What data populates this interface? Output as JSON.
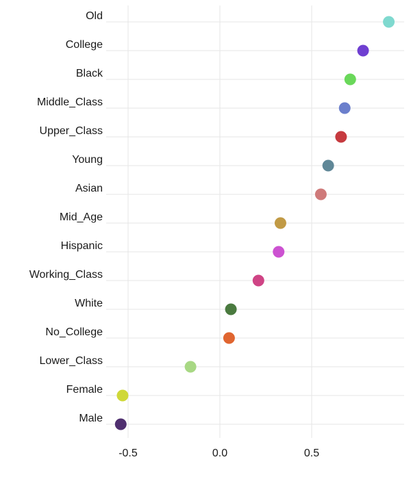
{
  "chart_data": {
    "type": "scatter",
    "title": "",
    "xlabel": "",
    "ylabel": "",
    "xlim": [
      -0.6,
      1.0
    ],
    "xticks": [
      -0.5,
      0.0,
      0.5
    ],
    "xtick_labels": [
      "-0.5",
      "0.0",
      "0.5"
    ],
    "grid": true,
    "legend": "none",
    "points": [
      {
        "label": "Old",
        "value": 0.92,
        "color": "#7fd9cf"
      },
      {
        "label": "College",
        "value": 0.78,
        "color": "#6f3fd1"
      },
      {
        "label": "Black",
        "value": 0.71,
        "color": "#6ad85a"
      },
      {
        "label": "Middle_Class",
        "value": 0.68,
        "color": "#6b7fcc"
      },
      {
        "label": "Upper_Class",
        "value": 0.66,
        "color": "#c63a3f"
      },
      {
        "label": "Young",
        "value": 0.59,
        "color": "#5f8797"
      },
      {
        "label": "Asian",
        "value": 0.55,
        "color": "#cf7a7a"
      },
      {
        "label": "Mid_Age",
        "value": 0.33,
        "color": "#c19a45"
      },
      {
        "label": "Hispanic",
        "value": 0.32,
        "color": "#cc52d1"
      },
      {
        "label": "Working_Class",
        "value": 0.21,
        "color": "#cf4485"
      },
      {
        "label": "White",
        "value": 0.06,
        "color": "#4a7a3f"
      },
      {
        "label": "No_College",
        "value": 0.05,
        "color": "#e06530"
      },
      {
        "label": "Lower_Class",
        "value": -0.16,
        "color": "#a8d884"
      },
      {
        "label": "Female",
        "value": -0.53,
        "color": "#cfd838"
      },
      {
        "label": "Male",
        "value": -0.54,
        "color": "#4f2f6f"
      }
    ]
  }
}
